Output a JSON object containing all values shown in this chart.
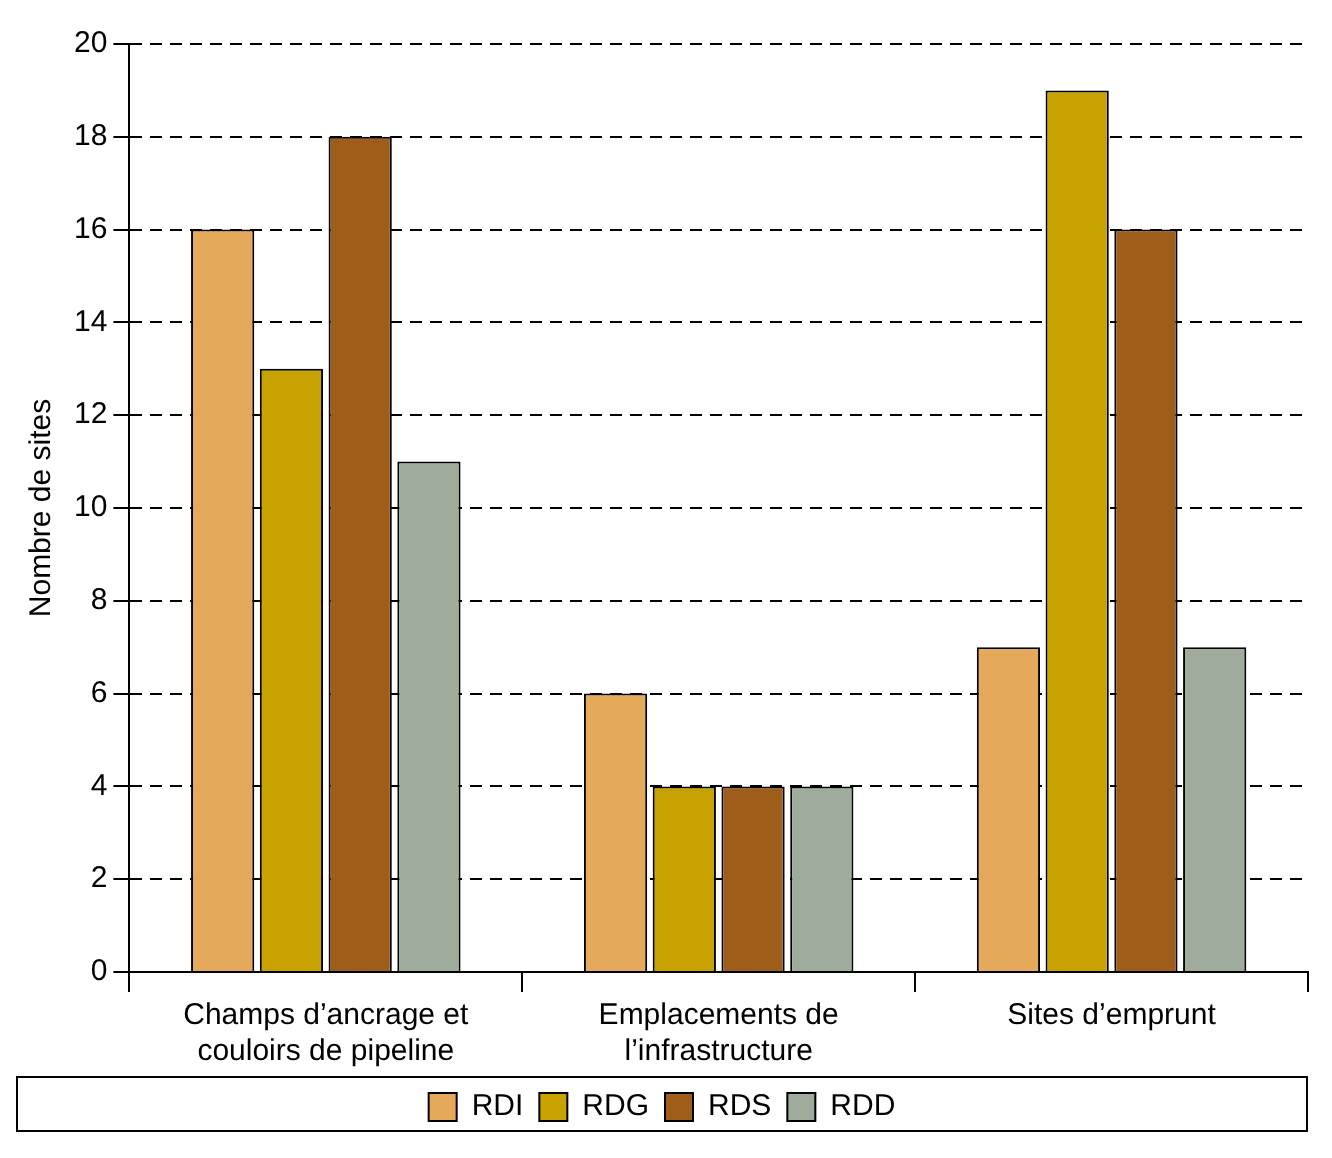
{
  "chart_data": {
    "type": "bar",
    "ylabel": "Nombre de sites",
    "categories": [
      "Champs d’ancrage et couloirs de pipeline",
      "Emplacements de l’infrastructure",
      "Sites d’emprunt"
    ],
    "series": [
      {
        "name": "RDI",
        "color": "#e5a95c",
        "values": [
          16,
          6,
          7
        ]
      },
      {
        "name": "RDG",
        "color": "#c8a200",
        "values": [
          13,
          4,
          19
        ]
      },
      {
        "name": "RDS",
        "color": "#9e5e1a",
        "values": [
          18,
          4,
          16
        ]
      },
      {
        "name": "RDD",
        "color": "#9fac9c",
        "values": [
          11,
          4,
          7
        ]
      }
    ],
    "ylim": [
      0,
      20
    ],
    "yticks": [
      0,
      2,
      4,
      6,
      8,
      10,
      12,
      14,
      16,
      18,
      20
    ],
    "grid": "y",
    "legend": "bottom"
  }
}
